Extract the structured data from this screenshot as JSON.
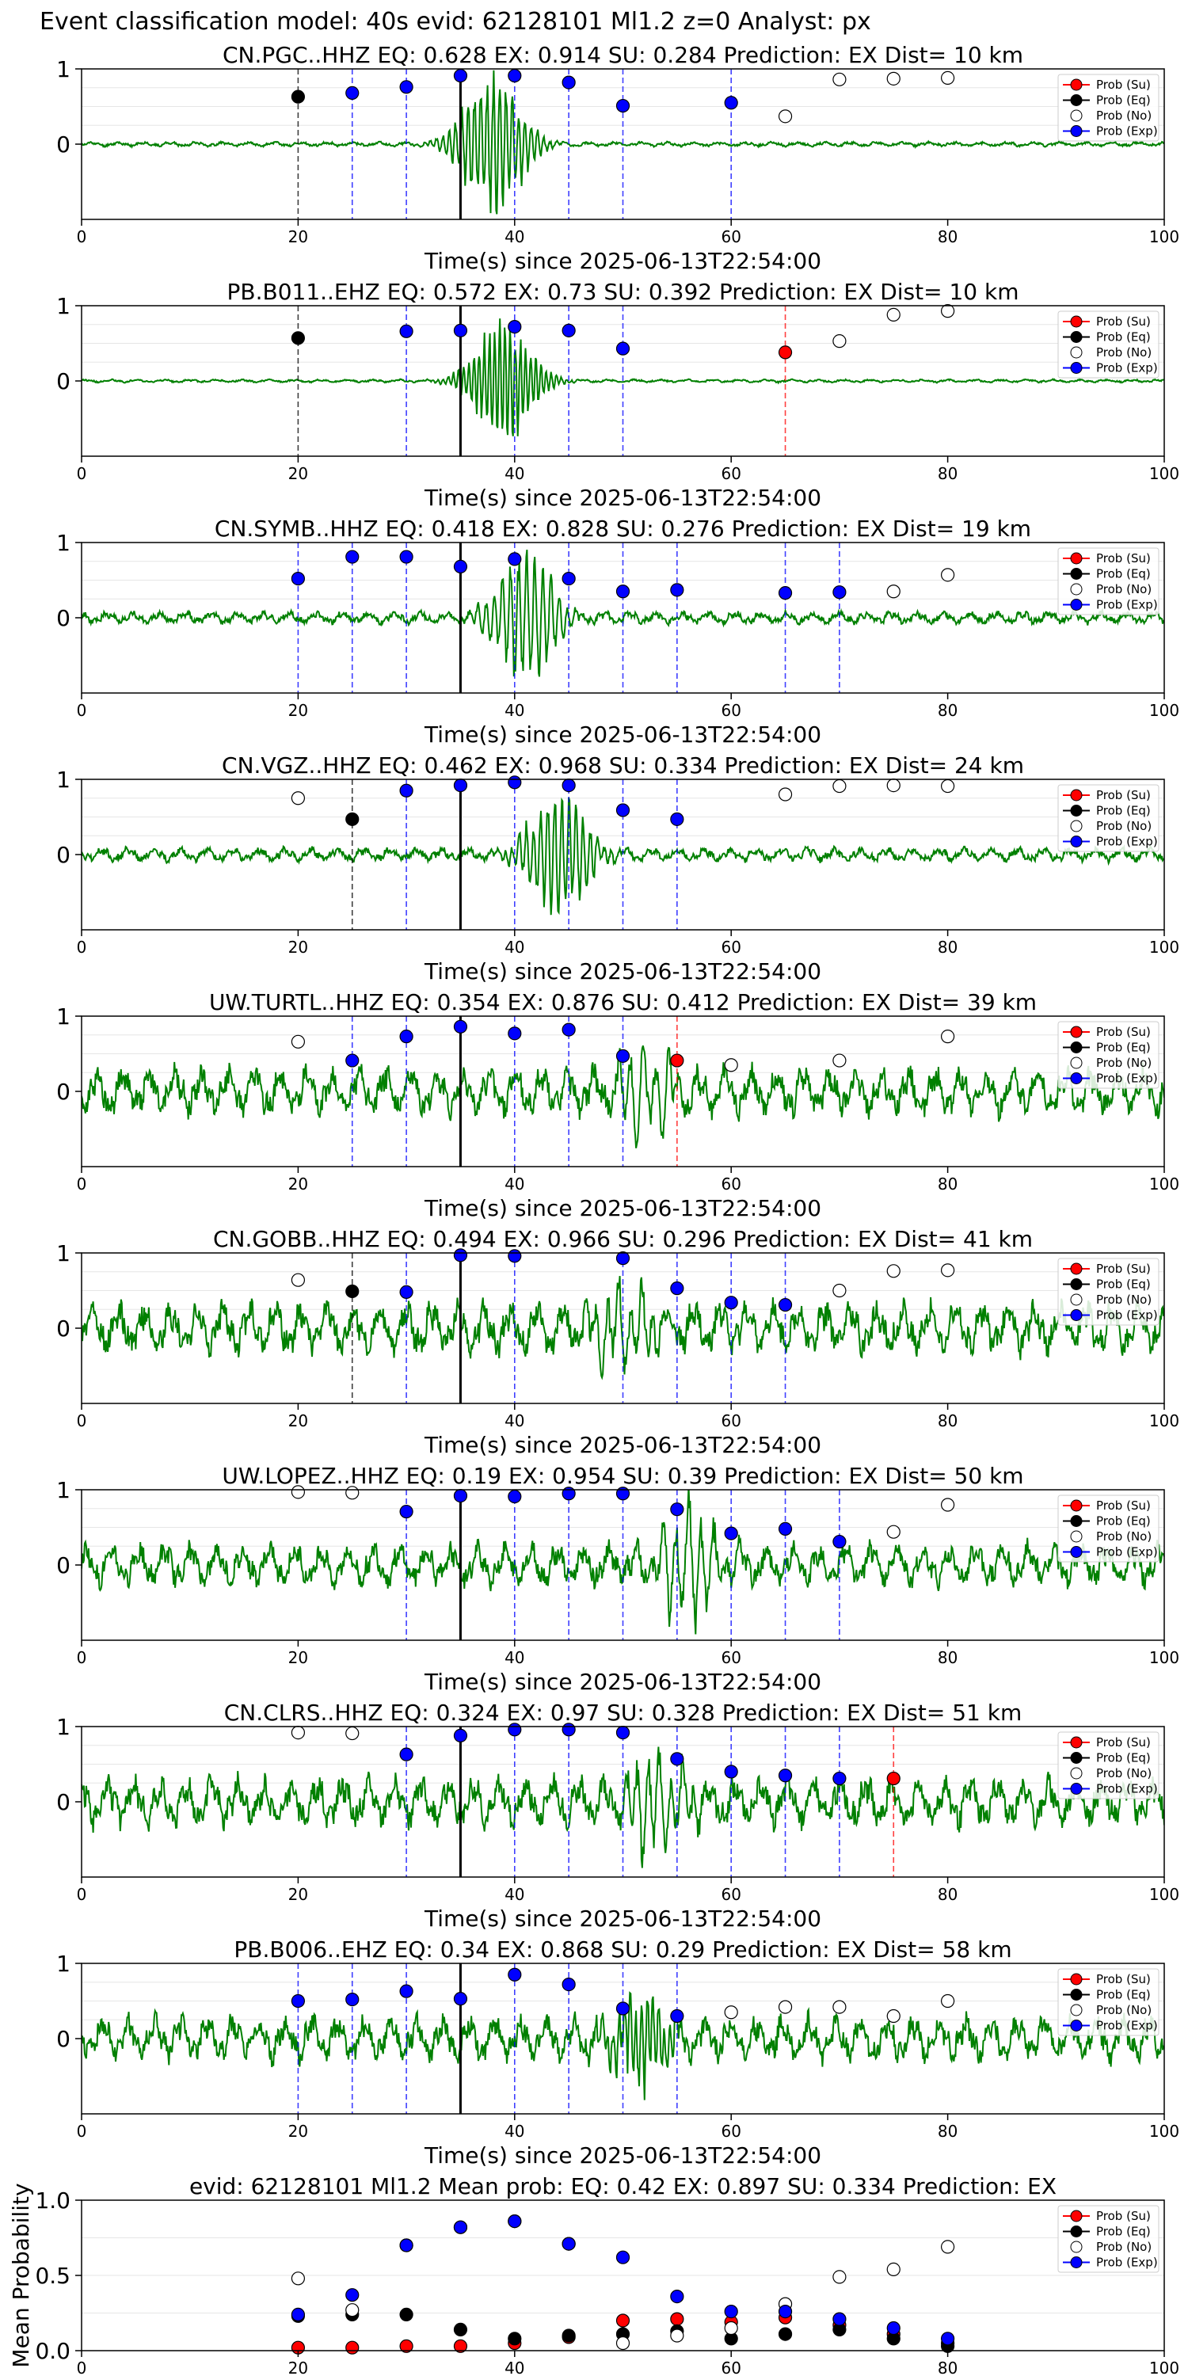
{
  "suptitle": "Event classification model: 40s evid: 62128101 Ml1.2 z=0 Analyst: px",
  "xlabel": "Time(s) since 2025-06-13T22:54:00",
  "legend": [
    "Prob (Su)",
    "Prob (Eq)",
    "Prob (No)",
    "Prob (Exp)"
  ],
  "colors": {
    "su": "#ff0000",
    "eq": "#000000",
    "no": "#ffffff",
    "exp": "#0000ff",
    "waveform": "#008000",
    "pick": "#000000"
  },
  "chart_data": [
    {
      "type": "line",
      "title": "CN.PGC..HHZ   EQ: 0.628  EX: 0.914  SU: 0.284   Prediction: EX    Dist= 10 km",
      "xlim": [
        0,
        100
      ],
      "ylim": [
        -1,
        1
      ],
      "yticks": [
        0,
        1
      ],
      "xticks": [
        0,
        20,
        40,
        60,
        80,
        100
      ],
      "pick_time": 35,
      "waveform": {
        "seed": 11,
        "amp": 0.03,
        "bursts": [
          {
            "t": 38,
            "a": 0.9,
            "f": 1.8
          }
        ]
      },
      "markers": [
        {
          "t": 20,
          "c": "eq",
          "p": 0.63
        },
        {
          "t": 25,
          "c": "exp",
          "p": 0.68
        },
        {
          "t": 30,
          "c": "exp",
          "p": 0.76
        },
        {
          "t": 35,
          "c": "exp",
          "p": 0.91
        },
        {
          "t": 40,
          "c": "exp",
          "p": 0.91
        },
        {
          "t": 45,
          "c": "exp",
          "p": 0.82
        },
        {
          "t": 50,
          "c": "exp",
          "p": 0.51
        },
        {
          "t": 60,
          "c": "exp",
          "p": 0.55
        },
        {
          "t": 65,
          "c": "no",
          "p": 0.37
        },
        {
          "t": 70,
          "c": "no",
          "p": 0.86
        },
        {
          "t": 75,
          "c": "no",
          "p": 0.87
        },
        {
          "t": 80,
          "c": "no",
          "p": 0.88
        }
      ]
    },
    {
      "type": "line",
      "title": "PB.B011..EHZ   EQ: 0.572  EX: 0.73  SU: 0.392   Prediction: EX    Dist= 10 km",
      "xlim": [
        0,
        100
      ],
      "ylim": [
        -1,
        1
      ],
      "yticks": [
        0,
        1
      ],
      "xticks": [
        0,
        20,
        40,
        60,
        80,
        100
      ],
      "pick_time": 35,
      "waveform": {
        "seed": 22,
        "amp": 0.02,
        "bursts": [
          {
            "t": 39,
            "a": 0.75,
            "f": 2.2
          }
        ]
      },
      "markers": [
        {
          "t": 20,
          "c": "eq",
          "p": 0.57
        },
        {
          "t": 30,
          "c": "exp",
          "p": 0.66
        },
        {
          "t": 35,
          "c": "exp",
          "p": 0.67
        },
        {
          "t": 40,
          "c": "exp",
          "p": 0.72
        },
        {
          "t": 45,
          "c": "exp",
          "p": 0.67
        },
        {
          "t": 50,
          "c": "exp",
          "p": 0.43
        },
        {
          "t": 65,
          "c": "su",
          "p": 0.38
        },
        {
          "t": 70,
          "c": "no",
          "p": 0.53
        },
        {
          "t": 75,
          "c": "no",
          "p": 0.88
        },
        {
          "t": 80,
          "c": "no",
          "p": 0.93
        }
      ]
    },
    {
      "type": "line",
      "title": "CN.SYMB..HHZ   EQ: 0.418  EX: 0.828  SU: 0.276   Prediction: EX    Dist= 19 km",
      "xlim": [
        0,
        100
      ],
      "ylim": [
        -1,
        1
      ],
      "yticks": [
        0,
        1
      ],
      "xticks": [
        0,
        20,
        40,
        60,
        80,
        100
      ],
      "pick_time": 35,
      "waveform": {
        "seed": 33,
        "amp": 0.08,
        "bursts": [
          {
            "t": 41,
            "a": 0.85,
            "f": 1.4
          }
        ]
      },
      "markers": [
        {
          "t": 20,
          "c": "exp",
          "p": 0.52
        },
        {
          "t": 25,
          "c": "exp",
          "p": 0.81
        },
        {
          "t": 30,
          "c": "exp",
          "p": 0.81
        },
        {
          "t": 35,
          "c": "exp",
          "p": 0.68
        },
        {
          "t": 40,
          "c": "exp",
          "p": 0.78
        },
        {
          "t": 45,
          "c": "exp",
          "p": 0.52
        },
        {
          "t": 50,
          "c": "exp",
          "p": 0.35
        },
        {
          "t": 55,
          "c": "exp",
          "p": 0.37
        },
        {
          "t": 65,
          "c": "exp",
          "p": 0.33
        },
        {
          "t": 70,
          "c": "exp",
          "p": 0.34
        },
        {
          "t": 75,
          "c": "no",
          "p": 0.35
        },
        {
          "t": 80,
          "c": "no",
          "p": 0.57
        }
      ]
    },
    {
      "type": "line",
      "title": "CN.VGZ..HHZ   EQ: 0.462  EX: 0.968  SU: 0.334   Prediction: EX    Dist= 24 km",
      "xlim": [
        0,
        100
      ],
      "ylim": [
        -1,
        1
      ],
      "yticks": [
        0,
        1
      ],
      "xticks": [
        0,
        20,
        40,
        60,
        80,
        100
      ],
      "pick_time": 35,
      "waveform": {
        "seed": 44,
        "amp": 0.09,
        "bursts": [
          {
            "t": 44,
            "a": 0.8,
            "f": 1.6
          }
        ]
      },
      "markers": [
        {
          "t": 20,
          "c": "no",
          "p": 0.75
        },
        {
          "t": 25,
          "c": "eq",
          "p": 0.47
        },
        {
          "t": 30,
          "c": "exp",
          "p": 0.85
        },
        {
          "t": 35,
          "c": "exp",
          "p": 0.92
        },
        {
          "t": 40,
          "c": "exp",
          "p": 0.96
        },
        {
          "t": 45,
          "c": "exp",
          "p": 0.92
        },
        {
          "t": 50,
          "c": "exp",
          "p": 0.59
        },
        {
          "t": 55,
          "c": "exp",
          "p": 0.47
        },
        {
          "t": 65,
          "c": "no",
          "p": 0.8
        },
        {
          "t": 70,
          "c": "no",
          "p": 0.91
        },
        {
          "t": 75,
          "c": "no",
          "p": 0.92
        },
        {
          "t": 80,
          "c": "no",
          "p": 0.91
        }
      ]
    },
    {
      "type": "line",
      "title": "UW.TURTL..HHZ   EQ: 0.354  EX: 0.876  SU: 0.412   Prediction: EX    Dist= 39 km",
      "xlim": [
        0,
        100
      ],
      "ylim": [
        -1,
        1
      ],
      "yticks": [
        0,
        1
      ],
      "xticks": [
        0,
        20,
        40,
        60,
        80,
        100
      ],
      "pick_time": 35,
      "waveform": {
        "seed": 55,
        "amp": 0.32,
        "bursts": [
          {
            "t": 52,
            "a": 0.6,
            "f": 0.9
          }
        ]
      },
      "markers": [
        {
          "t": 20,
          "c": "no",
          "p": 0.66
        },
        {
          "t": 25,
          "c": "exp",
          "p": 0.41
        },
        {
          "t": 30,
          "c": "exp",
          "p": 0.73
        },
        {
          "t": 35,
          "c": "exp",
          "p": 0.86
        },
        {
          "t": 40,
          "c": "exp",
          "p": 0.77
        },
        {
          "t": 45,
          "c": "exp",
          "p": 0.82
        },
        {
          "t": 50,
          "c": "exp",
          "p": 0.47
        },
        {
          "t": 55,
          "c": "su",
          "p": 0.41
        },
        {
          "t": 60,
          "c": "no",
          "p": 0.35
        },
        {
          "t": 70,
          "c": "no",
          "p": 0.41
        },
        {
          "t": 80,
          "c": "no",
          "p": 0.73
        }
      ]
    },
    {
      "type": "line",
      "title": "CN.GOBB..HHZ   EQ: 0.494  EX: 0.966  SU: 0.296   Prediction: EX    Dist= 41 km",
      "xlim": [
        0,
        100
      ],
      "ylim": [
        -1,
        1
      ],
      "yticks": [
        0,
        1
      ],
      "xticks": [
        0,
        20,
        40,
        60,
        80,
        100
      ],
      "pick_time": 35,
      "waveform": {
        "seed": 66,
        "amp": 0.35,
        "bursts": [
          {
            "t": 50,
            "a": 0.5,
            "f": 1.0
          }
        ]
      },
      "markers": [
        {
          "t": 20,
          "c": "no",
          "p": 0.64
        },
        {
          "t": 25,
          "c": "eq",
          "p": 0.49
        },
        {
          "t": 30,
          "c": "exp",
          "p": 0.48
        },
        {
          "t": 35,
          "c": "exp",
          "p": 0.97
        },
        {
          "t": 40,
          "c": "exp",
          "p": 0.96
        },
        {
          "t": 50,
          "c": "exp",
          "p": 0.93
        },
        {
          "t": 55,
          "c": "exp",
          "p": 0.53
        },
        {
          "t": 60,
          "c": "exp",
          "p": 0.34
        },
        {
          "t": 65,
          "c": "exp",
          "p": 0.31
        },
        {
          "t": 70,
          "c": "no",
          "p": 0.5
        },
        {
          "t": 75,
          "c": "no",
          "p": 0.76
        },
        {
          "t": 80,
          "c": "no",
          "p": 0.77
        }
      ]
    },
    {
      "type": "line",
      "title": "UW.LOPEZ..HHZ   EQ: 0.19  EX: 0.954  SU: 0.39   Prediction: EX    Dist= 50 km",
      "xlim": [
        0,
        100
      ],
      "ylim": [
        -1,
        1
      ],
      "yticks": [
        0,
        1
      ],
      "xticks": [
        0,
        20,
        40,
        60,
        80,
        100
      ],
      "pick_time": 35,
      "waveform": {
        "seed": 77,
        "amp": 0.28,
        "bursts": [
          {
            "t": 56,
            "a": 0.7,
            "f": 0.9
          }
        ]
      },
      "markers": [
        {
          "t": 20,
          "c": "no",
          "p": 0.97
        },
        {
          "t": 25,
          "c": "no",
          "p": 0.96
        },
        {
          "t": 30,
          "c": "exp",
          "p": 0.71
        },
        {
          "t": 35,
          "c": "exp",
          "p": 0.92
        },
        {
          "t": 40,
          "c": "exp",
          "p": 0.91
        },
        {
          "t": 45,
          "c": "exp",
          "p": 0.95
        },
        {
          "t": 50,
          "c": "exp",
          "p": 0.95
        },
        {
          "t": 55,
          "c": "exp",
          "p": 0.74
        },
        {
          "t": 60,
          "c": "exp",
          "p": 0.42
        },
        {
          "t": 65,
          "c": "exp",
          "p": 0.48
        },
        {
          "t": 70,
          "c": "exp",
          "p": 0.31
        },
        {
          "t": 75,
          "c": "no",
          "p": 0.44
        },
        {
          "t": 80,
          "c": "no",
          "p": 0.8
        }
      ]
    },
    {
      "type": "line",
      "title": "CN.CLRS..HHZ   EQ: 0.324  EX: 0.97  SU: 0.328   Prediction: EX    Dist= 51 km",
      "xlim": [
        0,
        100
      ],
      "ylim": [
        -1,
        1
      ],
      "yticks": [
        0,
        1
      ],
      "xticks": [
        0,
        20,
        40,
        60,
        80,
        100
      ],
      "pick_time": 35,
      "waveform": {
        "seed": 88,
        "amp": 0.33,
        "bursts": [
          {
            "t": 53,
            "a": 0.6,
            "f": 1.0
          }
        ]
      },
      "markers": [
        {
          "t": 20,
          "c": "no",
          "p": 0.92
        },
        {
          "t": 25,
          "c": "no",
          "p": 0.91
        },
        {
          "t": 30,
          "c": "exp",
          "p": 0.63
        },
        {
          "t": 35,
          "c": "exp",
          "p": 0.88
        },
        {
          "t": 40,
          "c": "exp",
          "p": 0.96
        },
        {
          "t": 45,
          "c": "exp",
          "p": 0.96
        },
        {
          "t": 50,
          "c": "exp",
          "p": 0.92
        },
        {
          "t": 55,
          "c": "exp",
          "p": 0.57
        },
        {
          "t": 60,
          "c": "exp",
          "p": 0.4
        },
        {
          "t": 65,
          "c": "exp",
          "p": 0.35
        },
        {
          "t": 70,
          "c": "exp",
          "p": 0.31
        },
        {
          "t": 75,
          "c": "su",
          "p": 0.31
        }
      ]
    },
    {
      "type": "line",
      "title": "PB.B006..EHZ   EQ: 0.34  EX: 0.868  SU: 0.29   Prediction: EX    Dist= 58 km",
      "xlim": [
        0,
        100
      ],
      "ylim": [
        -1,
        1
      ],
      "yticks": [
        0,
        1
      ],
      "xticks": [
        0,
        20,
        40,
        60,
        80,
        100
      ],
      "pick_time": 35,
      "waveform": {
        "seed": 99,
        "amp": 0.3,
        "bursts": [
          {
            "t": 52,
            "a": 0.55,
            "f": 2.0
          }
        ]
      },
      "markers": [
        {
          "t": 20,
          "c": "exp",
          "p": 0.5
        },
        {
          "t": 25,
          "c": "exp",
          "p": 0.52
        },
        {
          "t": 30,
          "c": "exp",
          "p": 0.63
        },
        {
          "t": 35,
          "c": "exp",
          "p": 0.53
        },
        {
          "t": 40,
          "c": "exp",
          "p": 0.85
        },
        {
          "t": 45,
          "c": "exp",
          "p": 0.72
        },
        {
          "t": 50,
          "c": "exp",
          "p": 0.4
        },
        {
          "t": 55,
          "c": "exp",
          "p": 0.3
        },
        {
          "t": 60,
          "c": "no",
          "p": 0.35
        },
        {
          "t": 65,
          "c": "no",
          "p": 0.42
        },
        {
          "t": 70,
          "c": "no",
          "p": 0.42
        },
        {
          "t": 75,
          "c": "no",
          "p": 0.3
        },
        {
          "t": 80,
          "c": "no",
          "p": 0.5
        }
      ]
    },
    {
      "type": "scatter",
      "title": "evid: 62128101  Ml1.2   Mean prob:   EQ: 0.42  EX: 0.897  SU: 0.334   Prediction: EX",
      "ylabel": "Mean Probability",
      "xlim": [
        0,
        100
      ],
      "ylim": [
        0,
        1
      ],
      "yticks": [
        0,
        0.5,
        1
      ],
      "ytick_labels": [
        "0.0",
        "0.5",
        "1.0"
      ],
      "xticks": [
        0,
        20,
        40,
        60,
        80,
        100
      ],
      "x": [
        20,
        25,
        30,
        35,
        40,
        45,
        50,
        55,
        60,
        65,
        70,
        75,
        80
      ],
      "series": [
        {
          "name": "Prob (Su)",
          "color": "su",
          "values": [
            0.02,
            0.02,
            0.03,
            0.03,
            0.05,
            0.09,
            0.2,
            0.21,
            0.19,
            0.22,
            0.17,
            0.11,
            0.05
          ]
        },
        {
          "name": "Prob (Eq)",
          "color": "eq",
          "values": [
            0.23,
            0.24,
            0.24,
            0.14,
            0.08,
            0.1,
            0.11,
            0.13,
            0.08,
            0.11,
            0.14,
            0.08,
            0.03
          ]
        },
        {
          "name": "Prob (No)",
          "color": "no",
          "values": [
            0.48,
            0.27,
            0.7,
            0.82,
            0.86,
            0.71,
            0.05,
            0.1,
            0.15,
            0.31,
            0.49,
            0.54,
            0.69
          ]
        },
        {
          "name": "Prob (Exp)",
          "color": "exp",
          "values": [
            0.24,
            0.37,
            0.7,
            0.82,
            0.86,
            0.71,
            0.62,
            0.36,
            0.26,
            0.26,
            0.21,
            0.15,
            0.08
          ]
        }
      ]
    }
  ]
}
